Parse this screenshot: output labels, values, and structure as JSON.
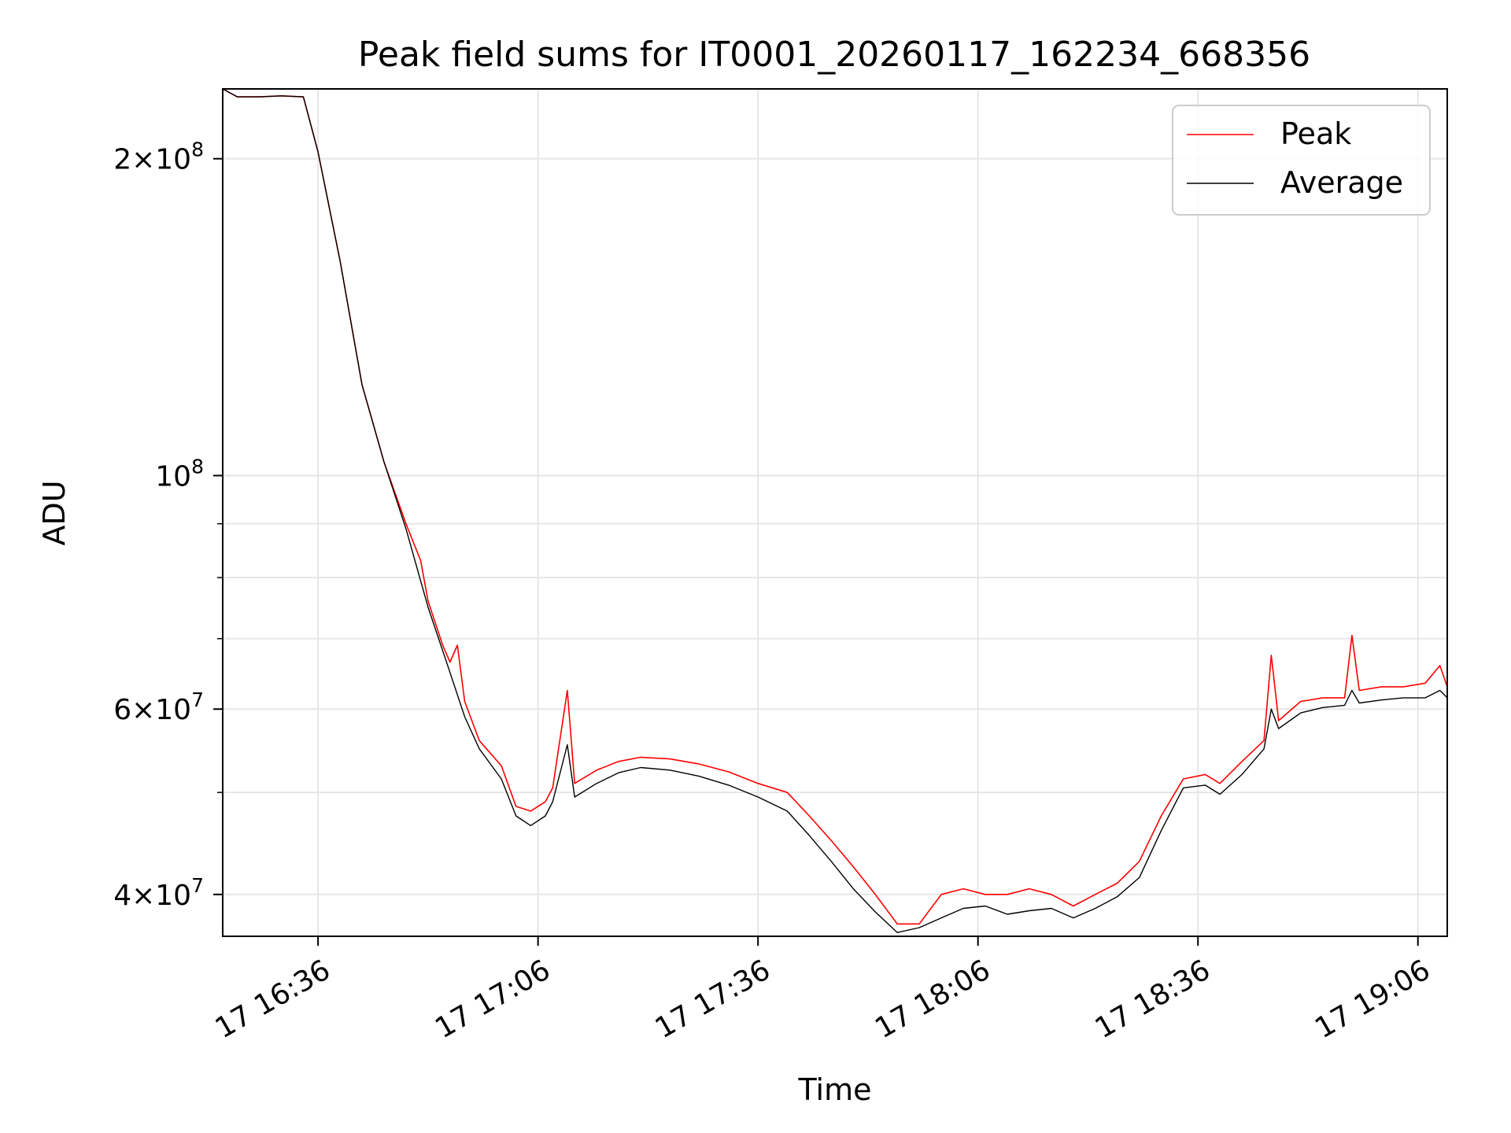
{
  "chart_data": {
    "type": "line",
    "title": "Peak field sums for IT0001_20260117_162234_668356",
    "xlabel": "Time",
    "ylabel": "ADU",
    "yscale": "log",
    "ylim": [
      36500000,
      233000000
    ],
    "xlim": [
      "2026-01-17 16:23",
      "2026-01-17 19:10"
    ],
    "grid": true,
    "legend_position": "top-right",
    "x_ticks": [
      "17 16:36",
      "17 17:06",
      "17 17:36",
      "17 18:06",
      "17 18:36",
      "17 19:06"
    ],
    "y_ticks": [
      {
        "value": 200000000,
        "mantissa": "2",
        "exp": "8"
      },
      {
        "value": 100000000,
        "mantissa": "",
        "exp": "8"
      },
      {
        "value": 60000000,
        "mantissa": "6",
        "exp": "7"
      },
      {
        "value": 40000000,
        "mantissa": "4",
        "exp": "7"
      }
    ],
    "series": [
      {
        "name": "Peak",
        "color": "#ff0000",
        "points": [
          [
            "2026-01-17 16:23",
            233000000
          ],
          [
            "2026-01-17 16:25",
            229000000
          ],
          [
            "2026-01-17 16:28",
            229000000
          ],
          [
            "2026-01-17 16:31",
            229500000
          ],
          [
            "2026-01-17 16:34",
            229000000
          ],
          [
            "2026-01-17 16:36",
            203000000
          ],
          [
            "2026-01-17 16:39",
            160000000
          ],
          [
            "2026-01-17 16:42",
            122000000
          ],
          [
            "2026-01-17 16:45",
            103000000
          ],
          [
            "2026-01-17 16:48",
            90000000
          ],
          [
            "2026-01-17 16:50",
            83000000
          ],
          [
            "2026-01-17 16:51",
            76000000
          ],
          [
            "2026-01-17 16:53",
            69000000
          ],
          [
            "2026-01-17 16:54",
            66500000
          ],
          [
            "2026-01-17 16:55",
            69000000
          ],
          [
            "2026-01-17 16:56",
            61000000
          ],
          [
            "2026-01-17 16:58",
            56000000
          ],
          [
            "2026-01-17 17:01",
            53000000
          ],
          [
            "2026-01-17 17:03",
            48500000
          ],
          [
            "2026-01-17 17:05",
            48000000
          ],
          [
            "2026-01-17 17:07",
            49000000
          ],
          [
            "2026-01-17 17:08",
            50500000
          ],
          [
            "2026-01-17 17:10",
            62500000
          ],
          [
            "2026-01-17 17:11",
            51000000
          ],
          [
            "2026-01-17 17:14",
            52500000
          ],
          [
            "2026-01-17 17:17",
            53500000
          ],
          [
            "2026-01-17 17:20",
            54000000
          ],
          [
            "2026-01-17 17:24",
            53800000
          ],
          [
            "2026-01-17 17:28",
            53200000
          ],
          [
            "2026-01-17 17:32",
            52300000
          ],
          [
            "2026-01-17 17:36",
            51000000
          ],
          [
            "2026-01-17 17:40",
            50000000
          ],
          [
            "2026-01-17 17:43",
            47500000
          ],
          [
            "2026-01-17 17:46",
            45000000
          ],
          [
            "2026-01-17 17:49",
            42500000
          ],
          [
            "2026-01-17 17:52",
            40000000
          ],
          [
            "2026-01-17 17:55",
            37500000
          ],
          [
            "2026-01-17 17:58",
            37500000
          ],
          [
            "2026-01-17 18:01",
            40000000
          ],
          [
            "2026-01-17 18:04",
            40500000
          ],
          [
            "2026-01-17 18:07",
            40000000
          ],
          [
            "2026-01-17 18:10",
            40000000
          ],
          [
            "2026-01-17 18:13",
            40500000
          ],
          [
            "2026-01-17 18:16",
            40000000
          ],
          [
            "2026-01-17 18:19",
            39000000
          ],
          [
            "2026-01-17 18:22",
            40000000
          ],
          [
            "2026-01-17 18:25",
            41000000
          ],
          [
            "2026-01-17 18:28",
            43000000
          ],
          [
            "2026-01-17 18:31",
            47500000
          ],
          [
            "2026-01-17 18:34",
            51500000
          ],
          [
            "2026-01-17 18:37",
            52000000
          ],
          [
            "2026-01-17 18:39",
            51000000
          ],
          [
            "2026-01-17 18:42",
            53500000
          ],
          [
            "2026-01-17 18:45",
            56000000
          ],
          [
            "2026-01-17 18:46",
            67500000
          ],
          [
            "2026-01-17 18:47",
            58500000
          ],
          [
            "2026-01-17 18:50",
            61000000
          ],
          [
            "2026-01-17 18:53",
            61500000
          ],
          [
            "2026-01-17 18:56",
            61500000
          ],
          [
            "2026-01-17 18:57",
            70500000
          ],
          [
            "2026-01-17 18:58",
            62500000
          ],
          [
            "2026-01-17 19:01",
            63000000
          ],
          [
            "2026-01-17 19:04",
            63000000
          ],
          [
            "2026-01-17 19:07",
            63500000
          ],
          [
            "2026-01-17 19:09",
            66000000
          ],
          [
            "2026-01-17 19:10",
            63000000
          ]
        ]
      },
      {
        "name": "Average",
        "color": "#000000",
        "points": [
          [
            "2026-01-17 16:23",
            233000000
          ],
          [
            "2026-01-17 16:25",
            229000000
          ],
          [
            "2026-01-17 16:28",
            229000000
          ],
          [
            "2026-01-17 16:31",
            229500000
          ],
          [
            "2026-01-17 16:34",
            229000000
          ],
          [
            "2026-01-17 16:36",
            203000000
          ],
          [
            "2026-01-17 16:39",
            160000000
          ],
          [
            "2026-01-17 16:42",
            122000000
          ],
          [
            "2026-01-17 16:45",
            103000000
          ],
          [
            "2026-01-17 16:48",
            89000000
          ],
          [
            "2026-01-17 16:51",
            75000000
          ],
          [
            "2026-01-17 16:54",
            65000000
          ],
          [
            "2026-01-17 16:56",
            59000000
          ],
          [
            "2026-01-17 16:58",
            55000000
          ],
          [
            "2026-01-17 17:01",
            51500000
          ],
          [
            "2026-01-17 17:03",
            47500000
          ],
          [
            "2026-01-17 17:05",
            46500000
          ],
          [
            "2026-01-17 17:07",
            47500000
          ],
          [
            "2026-01-17 17:08",
            49000000
          ],
          [
            "2026-01-17 17:10",
            55500000
          ],
          [
            "2026-01-17 17:11",
            49500000
          ],
          [
            "2026-01-17 17:14",
            51000000
          ],
          [
            "2026-01-17 17:17",
            52200000
          ],
          [
            "2026-01-17 17:20",
            52800000
          ],
          [
            "2026-01-17 17:24",
            52500000
          ],
          [
            "2026-01-17 17:28",
            51800000
          ],
          [
            "2026-01-17 17:32",
            50800000
          ],
          [
            "2026-01-17 17:36",
            49500000
          ],
          [
            "2026-01-17 17:40",
            48000000
          ],
          [
            "2026-01-17 17:43",
            45500000
          ],
          [
            "2026-01-17 17:46",
            43000000
          ],
          [
            "2026-01-17 17:49",
            40500000
          ],
          [
            "2026-01-17 17:52",
            38500000
          ],
          [
            "2026-01-17 17:55",
            36800000
          ],
          [
            "2026-01-17 17:58",
            37200000
          ],
          [
            "2026-01-17 18:01",
            38000000
          ],
          [
            "2026-01-17 18:04",
            38800000
          ],
          [
            "2026-01-17 18:07",
            39000000
          ],
          [
            "2026-01-17 18:10",
            38300000
          ],
          [
            "2026-01-17 18:13",
            38600000
          ],
          [
            "2026-01-17 18:16",
            38800000
          ],
          [
            "2026-01-17 18:19",
            38000000
          ],
          [
            "2026-01-17 18:22",
            38800000
          ],
          [
            "2026-01-17 18:25",
            39800000
          ],
          [
            "2026-01-17 18:28",
            41500000
          ],
          [
            "2026-01-17 18:31",
            46000000
          ],
          [
            "2026-01-17 18:34",
            50500000
          ],
          [
            "2026-01-17 18:37",
            50800000
          ],
          [
            "2026-01-17 18:39",
            49800000
          ],
          [
            "2026-01-17 18:42",
            52000000
          ],
          [
            "2026-01-17 18:45",
            55000000
          ],
          [
            "2026-01-17 18:46",
            60000000
          ],
          [
            "2026-01-17 18:47",
            57500000
          ],
          [
            "2026-01-17 18:50",
            59500000
          ],
          [
            "2026-01-17 18:53",
            60200000
          ],
          [
            "2026-01-17 18:56",
            60500000
          ],
          [
            "2026-01-17 18:57",
            62500000
          ],
          [
            "2026-01-17 18:58",
            60800000
          ],
          [
            "2026-01-17 19:01",
            61200000
          ],
          [
            "2026-01-17 19:04",
            61500000
          ],
          [
            "2026-01-17 19:07",
            61500000
          ],
          [
            "2026-01-17 19:09",
            62500000
          ],
          [
            "2026-01-17 19:10",
            61500000
          ]
        ]
      }
    ]
  }
}
